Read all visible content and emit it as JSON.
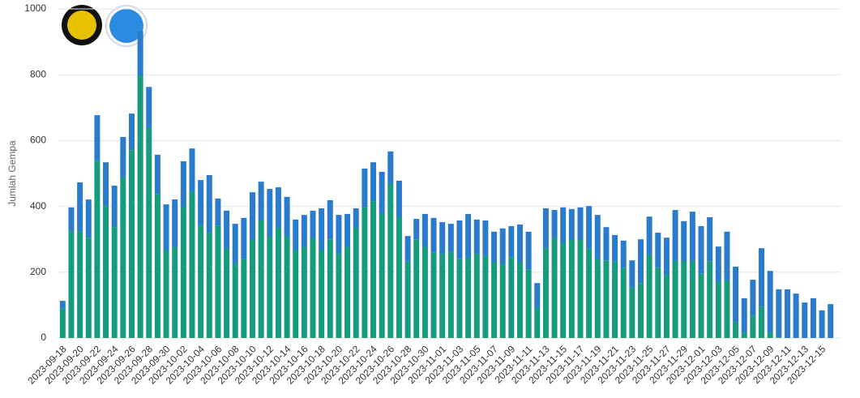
{
  "chart_data": {
    "type": "stacked-bar",
    "y_axis_label": "Jumlah Gempa",
    "categories": [
      "2023-09-18",
      null,
      "2023-09-20",
      null,
      "2023-09-22",
      null,
      "2023-09-24",
      null,
      "2023-09-26",
      null,
      "2023-09-28",
      null,
      "2023-09-30",
      null,
      "2023-10-02",
      null,
      "2023-10-04",
      null,
      "2023-10-06",
      null,
      "2023-10-08",
      null,
      "2023-10-10",
      null,
      "2023-10-12",
      null,
      "2023-10-14",
      null,
      "2023-10-16",
      null,
      "2023-10-18",
      null,
      "2023-10-20",
      null,
      "2023-10-22",
      null,
      "2023-10-24",
      null,
      "2023-10-26",
      null,
      "2023-10-28",
      null,
      "2023-10-30",
      null,
      "2023-11-01",
      null,
      "2023-11-03",
      null,
      "2023-11-05",
      null,
      "2023-11-07",
      null,
      "2023-11-09",
      null,
      "2023-11-11",
      null,
      "2023-11-13",
      null,
      "2023-11-15",
      null,
      "2023-11-17",
      null,
      "2023-11-19",
      null,
      "2023-11-21",
      null,
      "2023-11-23",
      null,
      "2023-11-25",
      null,
      "2023-11-27",
      null,
      "2023-11-29",
      null,
      "2023-12-01",
      null,
      "2023-12-03",
      null,
      "2023-12-05",
      null,
      "2023-12-07",
      null,
      "2023-12-09",
      null,
      "2023-12-11",
      null,
      "2023-12-13",
      null,
      "2023-12-15",
      null
    ],
    "series": [
      {
        "color": "#169b7e",
        "values": [
          89,
          323,
          323,
          305,
          539,
          401,
          337,
          488,
          571,
          798,
          638,
          438,
          266,
          276,
          399,
          446,
          342,
          320,
          342,
          271,
          224,
          241,
          298,
          357,
          308,
          335,
          308,
          266,
          276,
          303,
          266,
          300,
          256,
          276,
          335,
          397,
          416,
          377,
          468,
          367,
          232,
          300,
          276,
          259,
          256,
          261,
          241,
          244,
          256,
          249,
          229,
          224,
          246,
          229,
          209,
          91,
          273,
          303,
          288,
          298,
          298,
          273,
          239,
          236,
          232,
          212,
          153,
          167,
          254,
          214,
          192,
          234,
          234,
          234,
          195,
          232,
          170,
          175,
          47,
          17,
          67,
          94,
          17,
          2,
          0,
          0,
          0,
          0,
          0,
          0
        ]
      },
      {
        "color": "#2b7bcd",
        "values": [
          24,
          74,
          150,
          116,
          138,
          133,
          126,
          123,
          111,
          135,
          125,
          119,
          140,
          145,
          138,
          130,
          138,
          175,
          82,
          116,
          123,
          124,
          145,
          118,
          145,
          123,
          121,
          94,
          98,
          84,
          128,
          119,
          118,
          101,
          59,
          118,
          118,
          128,
          99,
          111,
          78,
          62,
          101,
          106,
          96,
          86,
          116,
          133,
          104,
          108,
          94,
          109,
          94,
          116,
          114,
          76,
          121,
          86,
          109,
          94,
          99,
          128,
          135,
          101,
          81,
          84,
          83,
          133,
          115,
          106,
          113,
          155,
          121,
          150,
          145,
          135,
          108,
          148,
          170,
          104,
          110,
          179,
          187,
          146,
          148,
          135,
          108,
          121,
          84,
          103
        ]
      }
    ],
    "ylim": [
      0,
      1000
    ],
    "yticks": [
      0,
      200,
      400,
      600,
      800,
      1000
    ],
    "grid": true
  }
}
